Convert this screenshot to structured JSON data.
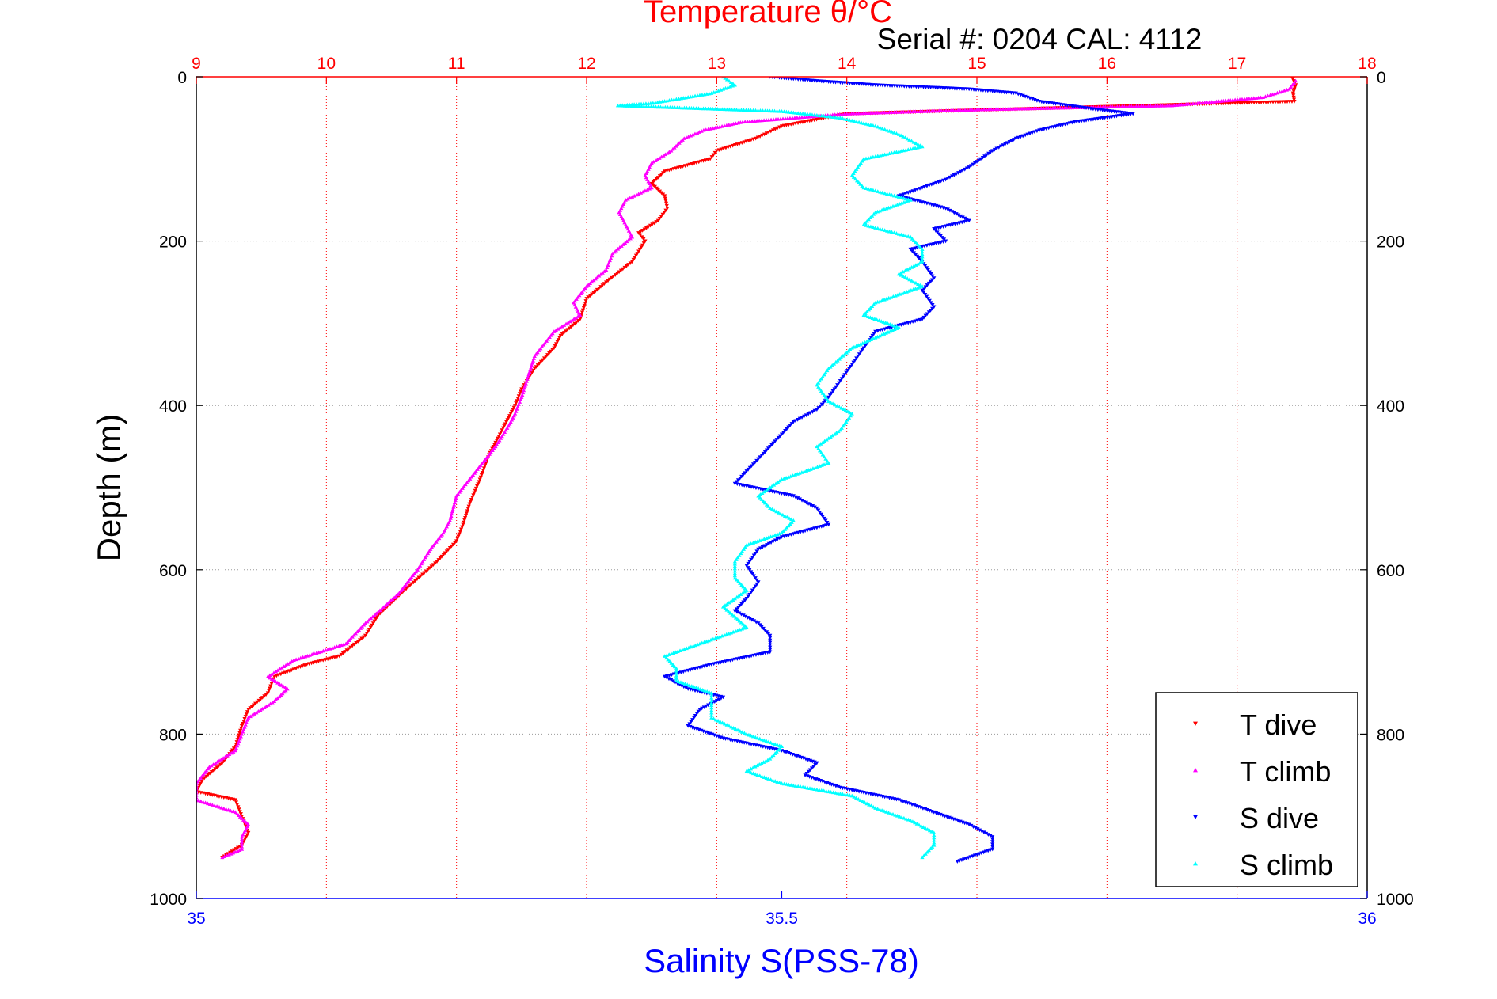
{
  "chart_data": {
    "type": "scatter",
    "title": "Temperature θ/°C",
    "subtitle": "Serial #: 0204  CAL: 4112",
    "ylabel": "Depth (m)",
    "xlabel_bottom": "Salinity S(PSS-78)",
    "depth_range": [
      0,
      1000
    ],
    "depth_ticks": [
      "0",
      "200",
      "400",
      "600",
      "800",
      "1000"
    ],
    "temperature_axis": {
      "range": [
        9,
        18
      ],
      "ticks": [
        "9",
        "10",
        "11",
        "12",
        "13",
        "14",
        "15",
        "16",
        "17",
        "18"
      ]
    },
    "salinity_axis": {
      "range": [
        35,
        36
      ],
      "ticks": [
        "35",
        "35.5",
        "36"
      ]
    },
    "grid": true,
    "legend_position": "bottom-right",
    "colors": {
      "t_dive": "#ff0000",
      "t_climb": "#ff00ff",
      "s_dive": "#0000ff",
      "s_climb": "#00ffff",
      "title": "#ff0000",
      "salinity_axis": "#0000ff",
      "text": "#000000",
      "grid": "#9a9a9a"
    },
    "series": [
      {
        "name": "T dive",
        "axis": "temperature",
        "marker": "down-triangle",
        "points": [
          [
            17.42,
            0
          ],
          [
            17.45,
            10
          ],
          [
            17.43,
            20
          ],
          [
            17.44,
            30
          ],
          [
            14.0,
            45
          ],
          [
            13.5,
            60
          ],
          [
            13.3,
            75
          ],
          [
            13.0,
            90
          ],
          [
            12.95,
            100
          ],
          [
            12.6,
            115
          ],
          [
            12.5,
            130
          ],
          [
            12.6,
            145
          ],
          [
            12.62,
            160
          ],
          [
            12.55,
            175
          ],
          [
            12.4,
            190
          ],
          [
            12.45,
            200
          ],
          [
            12.35,
            225
          ],
          [
            12.15,
            250
          ],
          [
            12.0,
            270
          ],
          [
            11.95,
            295
          ],
          [
            11.8,
            315
          ],
          [
            11.75,
            330
          ],
          [
            11.6,
            355
          ],
          [
            11.5,
            380
          ],
          [
            11.45,
            400
          ],
          [
            11.35,
            430
          ],
          [
            11.25,
            460
          ],
          [
            11.18,
            490
          ],
          [
            11.1,
            520
          ],
          [
            11.05,
            545
          ],
          [
            11.0,
            565
          ],
          [
            10.85,
            590
          ],
          [
            10.6,
            625
          ],
          [
            10.4,
            655
          ],
          [
            10.3,
            680
          ],
          [
            10.1,
            705
          ],
          [
            9.85,
            715
          ],
          [
            9.6,
            730
          ],
          [
            9.55,
            750
          ],
          [
            9.4,
            770
          ],
          [
            9.35,
            790
          ],
          [
            9.3,
            815
          ],
          [
            9.2,
            835
          ],
          [
            9.05,
            855
          ],
          [
            9.0,
            870
          ],
          [
            9.3,
            880
          ],
          [
            9.35,
            900
          ],
          [
            9.4,
            920
          ],
          [
            9.35,
            935
          ],
          [
            9.2,
            950
          ]
        ]
      },
      {
        "name": "T climb",
        "axis": "temperature",
        "marker": "up-triangle",
        "points": [
          [
            17.45,
            5
          ],
          [
            17.4,
            15
          ],
          [
            17.2,
            25
          ],
          [
            16.5,
            35
          ],
          [
            15.0,
            40
          ],
          [
            14.0,
            45
          ],
          [
            13.2,
            55
          ],
          [
            12.9,
            65
          ],
          [
            12.75,
            75
          ],
          [
            12.65,
            90
          ],
          [
            12.5,
            105
          ],
          [
            12.45,
            120
          ],
          [
            12.5,
            135
          ],
          [
            12.3,
            150
          ],
          [
            12.25,
            165
          ],
          [
            12.3,
            180
          ],
          [
            12.35,
            195
          ],
          [
            12.2,
            215
          ],
          [
            12.15,
            235
          ],
          [
            12.0,
            255
          ],
          [
            11.9,
            275
          ],
          [
            11.95,
            290
          ],
          [
            11.75,
            310
          ],
          [
            11.6,
            340
          ],
          [
            11.55,
            365
          ],
          [
            11.5,
            390
          ],
          [
            11.45,
            410
          ],
          [
            11.4,
            425
          ],
          [
            11.3,
            450
          ],
          [
            11.15,
            480
          ],
          [
            11.0,
            510
          ],
          [
            10.95,
            540
          ],
          [
            10.9,
            555
          ],
          [
            10.8,
            575
          ],
          [
            10.7,
            600
          ],
          [
            10.55,
            630
          ],
          [
            10.3,
            665
          ],
          [
            10.15,
            690
          ],
          [
            9.75,
            710
          ],
          [
            9.55,
            730
          ],
          [
            9.7,
            745
          ],
          [
            9.6,
            760
          ],
          [
            9.4,
            780
          ],
          [
            9.35,
            800
          ],
          [
            9.3,
            820
          ],
          [
            9.1,
            840
          ],
          [
            9.0,
            860
          ],
          [
            9.0,
            880
          ],
          [
            9.3,
            895
          ],
          [
            9.4,
            910
          ],
          [
            9.35,
            925
          ],
          [
            9.35,
            940
          ],
          [
            9.2,
            950
          ]
        ]
      },
      {
        "name": "S dive",
        "axis": "salinity",
        "marker": "down-triangle",
        "points": [
          [
            35.49,
            0
          ],
          [
            35.53,
            5
          ],
          [
            35.58,
            10
          ],
          [
            35.66,
            15
          ],
          [
            35.7,
            20
          ],
          [
            35.72,
            30
          ],
          [
            35.77,
            40
          ],
          [
            35.8,
            45
          ],
          [
            35.75,
            55
          ],
          [
            35.72,
            65
          ],
          [
            35.7,
            75
          ],
          [
            35.68,
            90
          ],
          [
            35.66,
            110
          ],
          [
            35.64,
            125
          ],
          [
            35.62,
            135
          ],
          [
            35.6,
            145
          ],
          [
            35.64,
            160
          ],
          [
            35.66,
            175
          ],
          [
            35.63,
            185
          ],
          [
            35.64,
            200
          ],
          [
            35.61,
            210
          ],
          [
            35.62,
            225
          ],
          [
            35.63,
            245
          ],
          [
            35.62,
            260
          ],
          [
            35.63,
            280
          ],
          [
            35.62,
            295
          ],
          [
            35.58,
            310
          ],
          [
            35.57,
            330
          ],
          [
            35.56,
            350
          ],
          [
            35.55,
            370
          ],
          [
            35.54,
            390
          ],
          [
            35.53,
            405
          ],
          [
            35.51,
            420
          ],
          [
            35.5,
            435
          ],
          [
            35.49,
            450
          ],
          [
            35.48,
            465
          ],
          [
            35.47,
            480
          ],
          [
            35.46,
            495
          ],
          [
            35.51,
            510
          ],
          [
            35.53,
            525
          ],
          [
            35.54,
            545
          ],
          [
            35.5,
            560
          ],
          [
            35.48,
            575
          ],
          [
            35.47,
            595
          ],
          [
            35.48,
            615
          ],
          [
            35.47,
            635
          ],
          [
            35.46,
            650
          ],
          [
            35.48,
            665
          ],
          [
            35.49,
            680
          ],
          [
            35.49,
            700
          ],
          [
            35.44,
            715
          ],
          [
            35.4,
            730
          ],
          [
            35.42,
            745
          ],
          [
            35.45,
            755
          ],
          [
            35.43,
            770
          ],
          [
            35.42,
            790
          ],
          [
            35.45,
            805
          ],
          [
            35.5,
            820
          ],
          [
            35.53,
            835
          ],
          [
            35.52,
            850
          ],
          [
            35.55,
            865
          ],
          [
            35.6,
            880
          ],
          [
            35.63,
            895
          ],
          [
            35.66,
            910
          ],
          [
            35.68,
            925
          ],
          [
            35.68,
            940
          ],
          [
            35.65,
            955
          ]
        ]
      },
      {
        "name": "S climb",
        "axis": "salinity",
        "marker": "up-triangle",
        "points": [
          [
            35.45,
            0
          ],
          [
            35.46,
            10
          ],
          [
            35.44,
            20
          ],
          [
            35.39,
            32
          ],
          [
            35.36,
            35
          ],
          [
            35.5,
            42
          ],
          [
            35.55,
            50
          ],
          [
            35.58,
            60
          ],
          [
            35.6,
            70
          ],
          [
            35.62,
            85
          ],
          [
            35.57,
            100
          ],
          [
            35.56,
            120
          ],
          [
            35.57,
            135
          ],
          [
            35.61,
            150
          ],
          [
            35.58,
            165
          ],
          [
            35.57,
            180
          ],
          [
            35.61,
            195
          ],
          [
            35.62,
            210
          ],
          [
            35.62,
            225
          ],
          [
            35.6,
            240
          ],
          [
            35.62,
            255
          ],
          [
            35.58,
            275
          ],
          [
            35.57,
            290
          ],
          [
            35.6,
            305
          ],
          [
            35.56,
            330
          ],
          [
            35.54,
            355
          ],
          [
            35.53,
            375
          ],
          [
            35.54,
            395
          ],
          [
            35.56,
            410
          ],
          [
            35.55,
            430
          ],
          [
            35.53,
            450
          ],
          [
            35.54,
            470
          ],
          [
            35.5,
            490
          ],
          [
            35.48,
            510
          ],
          [
            35.49,
            525
          ],
          [
            35.51,
            540
          ],
          [
            35.5,
            555
          ],
          [
            35.47,
            570
          ],
          [
            35.46,
            590
          ],
          [
            35.46,
            610
          ],
          [
            35.47,
            625
          ],
          [
            35.45,
            645
          ],
          [
            35.47,
            670
          ],
          [
            35.43,
            690
          ],
          [
            35.4,
            705
          ],
          [
            35.41,
            720
          ],
          [
            35.41,
            735
          ],
          [
            35.44,
            750
          ],
          [
            35.44,
            765
          ],
          [
            35.44,
            780
          ],
          [
            35.47,
            800
          ],
          [
            35.5,
            815
          ],
          [
            35.49,
            830
          ],
          [
            35.47,
            845
          ],
          [
            35.5,
            860
          ],
          [
            35.56,
            875
          ],
          [
            35.58,
            890
          ],
          [
            35.61,
            905
          ],
          [
            35.63,
            920
          ],
          [
            35.63,
            935
          ],
          [
            35.62,
            950
          ]
        ]
      }
    ]
  }
}
